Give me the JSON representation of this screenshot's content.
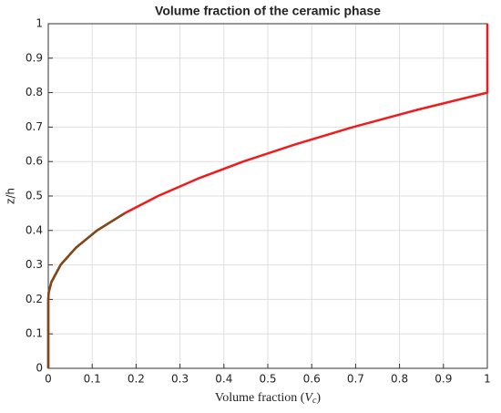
{
  "chart_data": {
    "type": "line",
    "title": "Volume fraction of the ceramic phase",
    "x_label": {
      "text": "Volume fraction (",
      "symbol": "V",
      "subscript": "c",
      "close": ")"
    },
    "y_label": "z/h",
    "x": [
      0,
      0,
      0,
      0.001,
      0.007,
      0.028,
      0.063,
      0.111,
      0.174,
      0.25,
      0.34,
      0.444,
      0.563,
      0.694,
      0.84,
      1,
      1,
      1
    ],
    "series": [
      {
        "color": "#ee1c1c",
        "values": [
          0,
          0.1,
          0.2,
          0.22,
          0.25,
          0.3,
          0.35,
          0.4,
          0.45,
          0.5,
          0.55,
          0.6,
          0.65,
          0.7,
          0.75,
          0.8,
          0.9,
          1
        ]
      },
      {
        "color": "#7a4a1a",
        "values": [
          0,
          0.1,
          0.2,
          0.22,
          0.25,
          0.3,
          0.35,
          0.4,
          0.45,
          null,
          null,
          null,
          null,
          null,
          null,
          null,
          null,
          null
        ]
      }
    ],
    "xlim": [
      0,
      1
    ],
    "ylim": [
      0,
      1
    ],
    "xticks": [
      0,
      0.1,
      0.2,
      0.3,
      0.4,
      0.5,
      0.6,
      0.7,
      0.8,
      0.9,
      1
    ],
    "yticks": [
      0,
      0.1,
      0.2,
      0.3,
      0.4,
      0.5,
      0.6,
      0.7,
      0.8,
      0.9,
      1
    ],
    "grid": true
  }
}
